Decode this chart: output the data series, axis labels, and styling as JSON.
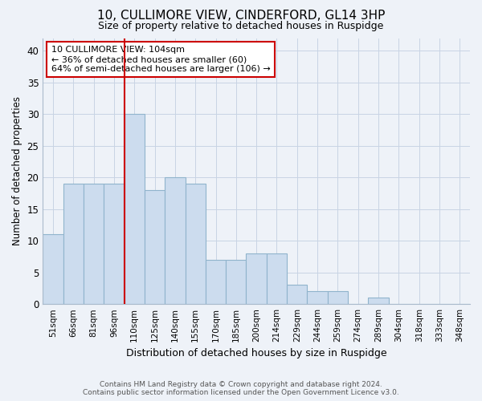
{
  "title": "10, CULLIMORE VIEW, CINDERFORD, GL14 3HP",
  "subtitle": "Size of property relative to detached houses in Ruspidge",
  "xlabel": "Distribution of detached houses by size in Ruspidge",
  "ylabel": "Number of detached properties",
  "footnote1": "Contains HM Land Registry data © Crown copyright and database right 2024.",
  "footnote2": "Contains public sector information licensed under the Open Government Licence v3.0.",
  "bin_labels": [
    "51sqm",
    "66sqm",
    "81sqm",
    "96sqm",
    "110sqm",
    "125sqm",
    "140sqm",
    "155sqm",
    "170sqm",
    "185sqm",
    "200sqm",
    "214sqm",
    "229sqm",
    "244sqm",
    "259sqm",
    "274sqm",
    "289sqm",
    "304sqm",
    "318sqm",
    "333sqm",
    "348sqm"
  ],
  "bar_values": [
    11,
    19,
    19,
    19,
    30,
    18,
    20,
    19,
    7,
    7,
    8,
    8,
    3,
    2,
    2,
    0,
    1,
    0,
    0,
    0,
    0
  ],
  "bar_color": "#ccdcee",
  "bar_edge_color": "#90b4cc",
  "vline_index": 4,
  "vline_color": "#cc0000",
  "annotation_line1": "10 CULLIMORE VIEW: 104sqm",
  "annotation_line2": "← 36% of detached houses are smaller (60)",
  "annotation_line3": "64% of semi-detached houses are larger (106) →",
  "annotation_box_color": "#ffffff",
  "annotation_box_edge": "#cc0000",
  "ylim": [
    0,
    42
  ],
  "yticks": [
    0,
    5,
    10,
    15,
    20,
    25,
    30,
    35,
    40
  ],
  "grid_color": "#c8d4e4",
  "background_color": "#eef2f8",
  "title_fontsize": 11,
  "subtitle_fontsize": 9
}
